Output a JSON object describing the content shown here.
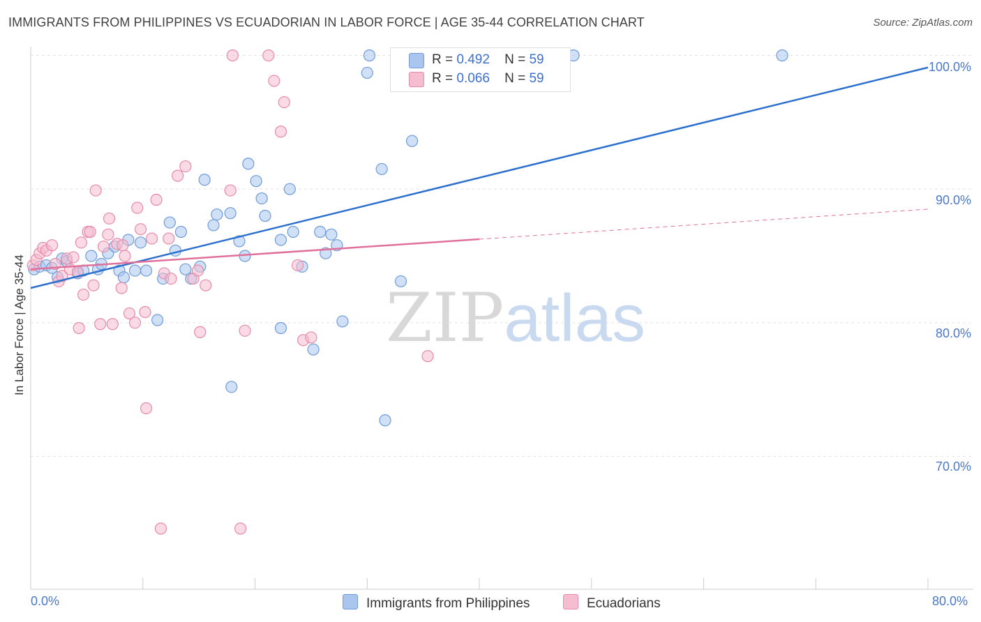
{
  "title": "IMMIGRANTS FROM PHILIPPINES VS ECUADORIAN IN LABOR FORCE | AGE 35-44 CORRELATION CHART",
  "source": "Source: ZipAtlas.com",
  "watermark": {
    "part1": "ZIP",
    "part2": "atlas"
  },
  "legend": {
    "row1": {
      "r_label": "R =",
      "r_value": "0.492",
      "n_label": "N =",
      "n_value": "59"
    },
    "row2": {
      "r_label": "R =",
      "r_value": "0.066",
      "n_label": "N =",
      "n_value": "59"
    }
  },
  "bottom_legend": {
    "series1": "Immigrants from Philippines",
    "series2": "Ecuadorians"
  },
  "colors": {
    "blue_fill": "#aac6ee",
    "blue_stroke": "#6f9ad9",
    "blue_line": "#2b6fcf",
    "pink_fill": "#f6bccf",
    "pink_stroke": "#e68aa8",
    "pink_line": "#e0709a",
    "grid": "#e3e3e3",
    "tick_label": "#4a78c8"
  },
  "chart_data": {
    "type": "scatter",
    "title": "IMMIGRANTS FROM PHILIPPINES VS ECUADORIAN IN LABOR FORCE | AGE 35-44 CORRELATION CHART",
    "xlabel": "",
    "ylabel": "In Labor Force | Age 35-44",
    "xlim": [
      0,
      80
    ],
    "ylim": [
      60,
      104
    ],
    "x_tick_labels": [
      "0.0%",
      "80.0%"
    ],
    "y_ticks": [
      70,
      80,
      90,
      100
    ],
    "y_tick_labels": [
      "70.0%",
      "80.0%",
      "90.0%",
      "100.0%"
    ],
    "grid": true,
    "legend_position": "top-center",
    "series": [
      {
        "name": "Immigrants from Philippines",
        "r": 0.492,
        "n": 59,
        "trend": {
          "x": [
            0,
            80
          ],
          "y": [
            82.6,
            99.1
          ],
          "dashed_from": null
        },
        "points": [
          [
            0.3,
            84.0
          ],
          [
            0.8,
            84.2
          ],
          [
            1.4,
            84.3
          ],
          [
            1.9,
            84.1
          ],
          [
            2.4,
            83.4
          ],
          [
            2.8,
            84.8
          ],
          [
            3.2,
            84.6
          ],
          [
            4.2,
            83.7
          ],
          [
            4.7,
            83.9
          ],
          [
            5.4,
            85.0
          ],
          [
            6.0,
            84.0
          ],
          [
            6.3,
            84.4
          ],
          [
            6.9,
            85.2
          ],
          [
            7.5,
            85.7
          ],
          [
            7.9,
            83.9
          ],
          [
            8.3,
            83.4
          ],
          [
            8.7,
            86.2
          ],
          [
            9.3,
            83.9
          ],
          [
            9.8,
            86.0
          ],
          [
            10.3,
            83.9
          ],
          [
            11.3,
            80.2
          ],
          [
            11.8,
            83.3
          ],
          [
            12.4,
            87.5
          ],
          [
            12.9,
            85.4
          ],
          [
            13.4,
            86.8
          ],
          [
            13.8,
            84.0
          ],
          [
            14.3,
            83.3
          ],
          [
            15.1,
            84.2
          ],
          [
            15.5,
            90.7
          ],
          [
            16.3,
            87.3
          ],
          [
            16.6,
            88.1
          ],
          [
            17.8,
            88.2
          ],
          [
            17.9,
            75.2
          ],
          [
            18.6,
            86.1
          ],
          [
            19.1,
            85.0
          ],
          [
            19.4,
            91.9
          ],
          [
            20.1,
            90.6
          ],
          [
            20.6,
            89.3
          ],
          [
            20.9,
            88.0
          ],
          [
            22.3,
            86.2
          ],
          [
            22.3,
            79.6
          ],
          [
            23.1,
            90.0
          ],
          [
            23.4,
            86.8
          ],
          [
            24.2,
            84.2
          ],
          [
            25.2,
            78.0
          ],
          [
            25.8,
            86.8
          ],
          [
            26.3,
            85.2
          ],
          [
            26.8,
            86.6
          ],
          [
            27.3,
            85.8
          ],
          [
            27.8,
            80.1
          ],
          [
            30.0,
            98.7
          ],
          [
            30.2,
            100.0
          ],
          [
            31.3,
            91.5
          ],
          [
            31.6,
            72.7
          ],
          [
            33.0,
            83.1
          ],
          [
            34.0,
            93.6
          ],
          [
            45.0,
            100.0
          ],
          [
            48.4,
            100.0
          ],
          [
            67.0,
            100.0
          ]
        ]
      },
      {
        "name": "Ecuadorians",
        "r": 0.066,
        "n": 59,
        "trend": {
          "x": [
            0,
            80
          ],
          "y": [
            84.0,
            88.5
          ],
          "dashed_from": 40
        },
        "points": [
          [
            0.2,
            84.3
          ],
          [
            0.5,
            84.7
          ],
          [
            0.8,
            85.2
          ],
          [
            1.1,
            85.6
          ],
          [
            1.4,
            85.4
          ],
          [
            1.9,
            85.8
          ],
          [
            2.2,
            84.4
          ],
          [
            2.5,
            83.1
          ],
          [
            2.8,
            83.5
          ],
          [
            3.2,
            84.8
          ],
          [
            3.5,
            84.0
          ],
          [
            3.8,
            84.9
          ],
          [
            4.2,
            83.8
          ],
          [
            4.3,
            79.6
          ],
          [
            4.5,
            86.0
          ],
          [
            4.7,
            82.1
          ],
          [
            5.1,
            86.8
          ],
          [
            5.3,
            86.8
          ],
          [
            5.6,
            82.8
          ],
          [
            5.8,
            89.9
          ],
          [
            6.2,
            79.9
          ],
          [
            6.5,
            85.7
          ],
          [
            6.9,
            86.6
          ],
          [
            7.0,
            87.8
          ],
          [
            7.3,
            79.9
          ],
          [
            7.7,
            85.9
          ],
          [
            8.1,
            82.6
          ],
          [
            8.2,
            85.8
          ],
          [
            8.4,
            85.0
          ],
          [
            8.8,
            80.7
          ],
          [
            9.3,
            80.0
          ],
          [
            9.5,
            88.6
          ],
          [
            9.8,
            87.0
          ],
          [
            10.2,
            80.8
          ],
          [
            10.3,
            73.6
          ],
          [
            10.8,
            86.3
          ],
          [
            11.2,
            89.2
          ],
          [
            11.6,
            64.6
          ],
          [
            11.9,
            83.7
          ],
          [
            12.3,
            86.3
          ],
          [
            12.5,
            83.3
          ],
          [
            13.1,
            91.0
          ],
          [
            13.8,
            91.7
          ],
          [
            14.5,
            83.3
          ],
          [
            14.9,
            83.9
          ],
          [
            15.1,
            79.3
          ],
          [
            15.6,
            82.8
          ],
          [
            17.8,
            89.9
          ],
          [
            18.0,
            100.0
          ],
          [
            18.7,
            64.6
          ],
          [
            19.1,
            79.4
          ],
          [
            21.2,
            100.0
          ],
          [
            21.7,
            98.1
          ],
          [
            22.3,
            94.3
          ],
          [
            22.6,
            96.5
          ],
          [
            23.8,
            84.3
          ],
          [
            24.3,
            78.7
          ],
          [
            25.0,
            78.9
          ],
          [
            35.4,
            77.5
          ]
        ]
      }
    ]
  },
  "axis_labels": {
    "x_left": "0.0%",
    "x_right": "80.0%",
    "y_label": "In Labor Force | Age 35-44"
  }
}
